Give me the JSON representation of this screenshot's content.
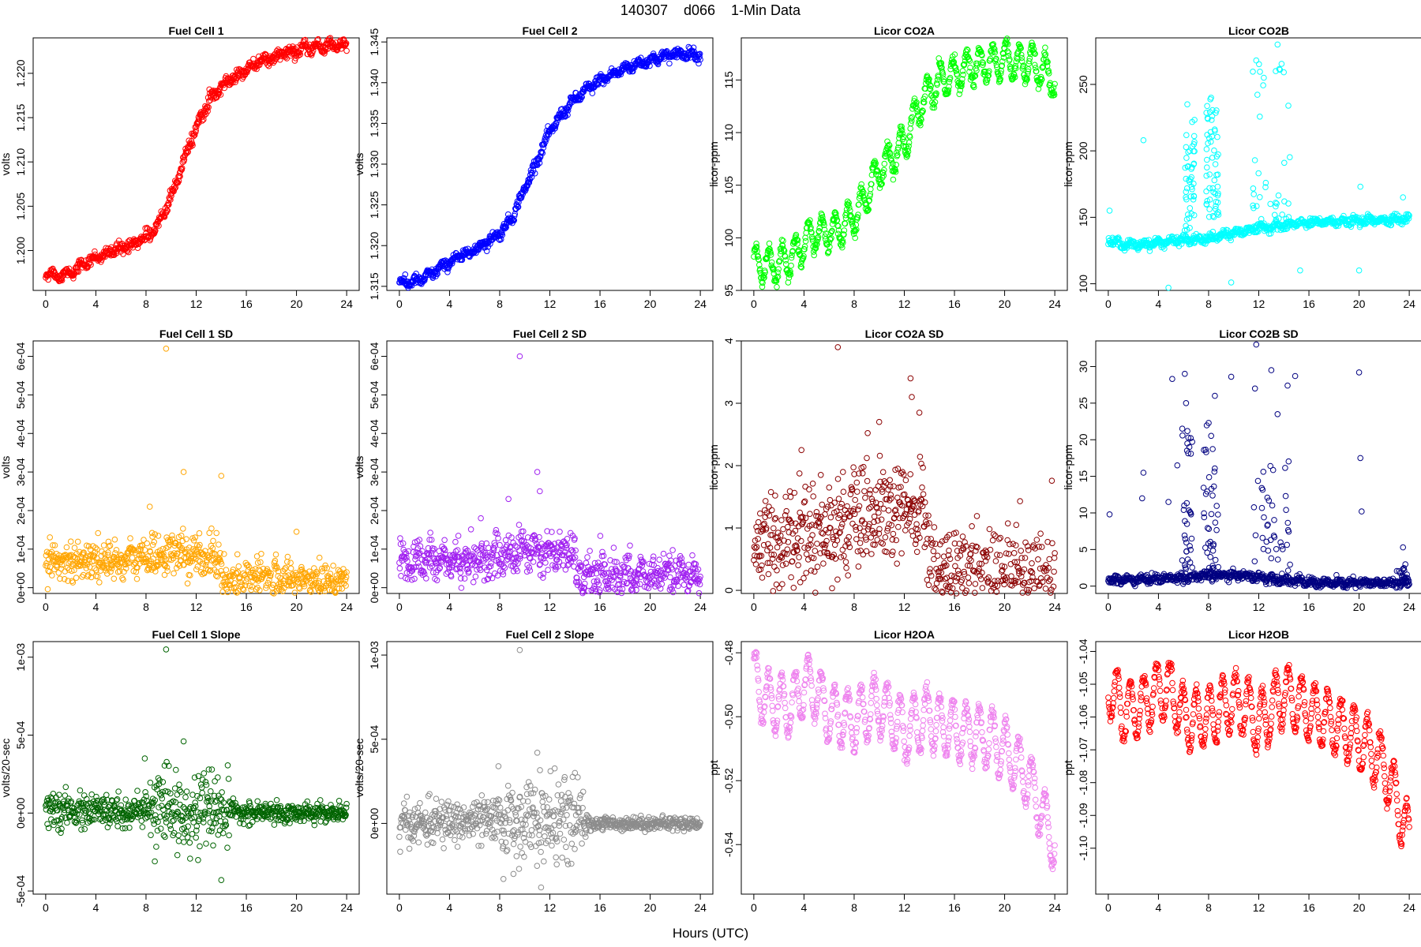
{
  "figure": {
    "title": "140307    d066    1-Min Data",
    "xlabel": "Hours (UTC)"
  },
  "chart_data": [
    {
      "type": "scatter",
      "title": "Fuel Cell 1",
      "ylabel": "volts",
      "color": "#ff0000",
      "xlim": [
        -1,
        25
      ],
      "xticks": [
        0,
        4,
        8,
        12,
        16,
        20,
        24
      ],
      "ylim": [
        1.1955,
        1.224
      ],
      "yticks": [
        1.2,
        1.205,
        1.21,
        1.215,
        1.22
      ],
      "ytick_labels": [
        "1.200",
        "1.205",
        "1.210",
        "1.215",
        "1.220"
      ],
      "pattern": "trend",
      "x": [
        0,
        1,
        2,
        3,
        4,
        5,
        6,
        7,
        8,
        9,
        10,
        11,
        12,
        13,
        14,
        15,
        16,
        17,
        18,
        19,
        20,
        21,
        22,
        23,
        24
      ],
      "y": [
        1.1975,
        1.1972,
        1.1975,
        1.1985,
        1.1992,
        1.1997,
        1.2002,
        1.2008,
        1.2015,
        1.203,
        1.206,
        1.21,
        1.214,
        1.2168,
        1.2185,
        1.2195,
        1.2205,
        1.2212,
        1.2218,
        1.2222,
        1.2226,
        1.2228,
        1.223,
        1.2232,
        1.223
      ],
      "noise": 0.0003,
      "wiggle": 0.0003
    },
    {
      "type": "scatter",
      "title": "Fuel Cell 2",
      "ylabel": "volts",
      "color": "#0000ff",
      "xlim": [
        -1,
        25
      ],
      "xticks": [
        0,
        4,
        8,
        12,
        16,
        20,
        24
      ],
      "ylim": [
        1.3145,
        1.3455
      ],
      "yticks": [
        1.315,
        1.32,
        1.325,
        1.33,
        1.335,
        1.34,
        1.345
      ],
      "ytick_labels": [
        "1.315",
        "1.320",
        "1.325",
        "1.330",
        "1.335",
        "1.340",
        "1.345"
      ],
      "pattern": "trend",
      "x": [
        0,
        1,
        2,
        3,
        4,
        5,
        6,
        7,
        8,
        9,
        10,
        11,
        12,
        13,
        14,
        15,
        16,
        17,
        18,
        19,
        20,
        21,
        22,
        23,
        24
      ],
      "y": [
        1.3155,
        1.3155,
        1.316,
        1.317,
        1.318,
        1.3188,
        1.3195,
        1.3205,
        1.3215,
        1.3235,
        1.327,
        1.3305,
        1.334,
        1.3362,
        1.338,
        1.3392,
        1.3403,
        1.341,
        1.3418,
        1.3423,
        1.3428,
        1.3432,
        1.3435,
        1.3436,
        1.3434
      ],
      "noise": 0.0003,
      "wiggle": 0.0003
    },
    {
      "type": "scatter",
      "title": "Licor CO2A",
      "ylabel": "licor-ppm",
      "color": "#00ff00",
      "xlim": [
        -1,
        25
      ],
      "xticks": [
        0,
        4,
        8,
        12,
        16,
        20,
        24
      ],
      "ylim": [
        95,
        119
      ],
      "yticks": [
        95,
        100,
        105,
        110,
        115
      ],
      "ytick_labels": [
        "95",
        "100",
        "105",
        "110",
        "115"
      ],
      "pattern": "trend",
      "x": [
        0,
        1,
        2,
        3,
        4,
        5,
        6,
        7,
        8,
        9,
        10,
        11,
        12,
        13,
        14,
        15,
        16,
        17,
        18,
        19,
        20,
        21,
        22,
        23,
        24
      ],
      "y": [
        97.5,
        97.5,
        97.5,
        98.0,
        99.5,
        100.5,
        100.5,
        101.0,
        102.0,
        104.0,
        106.5,
        107.5,
        109.0,
        112.0,
        114.0,
        115.0,
        115.5,
        116.0,
        116.5,
        116.5,
        117.0,
        116.5,
        116.5,
        116.0,
        115.0
      ],
      "noise": 0.3,
      "wiggle": 1.6
    },
    {
      "type": "scatter",
      "title": "Licor CO2B",
      "ylabel": "licor-ppm",
      "color": "#00ffff",
      "xlim": [
        -1,
        25
      ],
      "xticks": [
        0,
        4,
        8,
        12,
        16,
        20,
        24
      ],
      "ylim": [
        95,
        285
      ],
      "yticks": [
        100,
        150,
        200,
        250
      ],
      "ytick_labels": [
        "100",
        "150",
        "200",
        "250"
      ],
      "pattern": "spiky",
      "x": [
        0,
        1,
        2,
        3,
        4,
        5,
        6,
        7,
        8,
        9,
        10,
        11,
        12,
        13,
        14,
        15,
        16,
        17,
        18,
        19,
        20,
        21,
        22,
        23,
        24
      ],
      "y": [
        133,
        130,
        129,
        130,
        131,
        132,
        133,
        133,
        134,
        136,
        138,
        140,
        142,
        143,
        144,
        145,
        146,
        146,
        147,
        147,
        147,
        148,
        148,
        149,
        148
      ],
      "noise": 1.5,
      "wiggle": 1.5,
      "outliers": [
        [
          0.1,
          155
        ],
        [
          2.8,
          208
        ],
        [
          4.8,
          97
        ],
        [
          6.3,
          235
        ],
        [
          6.5,
          200
        ],
        [
          8.2,
          240
        ],
        [
          8.5,
          215
        ],
        [
          9.8,
          101
        ],
        [
          11.8,
          268
        ],
        [
          12.4,
          255
        ],
        [
          13.5,
          280
        ],
        [
          15.3,
          110
        ],
        [
          20.0,
          110
        ],
        [
          20.1,
          173
        ],
        [
          23.5,
          165
        ]
      ],
      "clusters": [
        [
          6.0,
          6.9,
          140,
          225,
          45
        ],
        [
          7.8,
          8.8,
          150,
          240,
          55
        ],
        [
          11.5,
          14.5,
          140,
          270,
          40
        ]
      ]
    },
    {
      "type": "scatter",
      "title": "Fuel Cell 1 SD",
      "ylabel": "volts",
      "color": "#ffa500",
      "xlim": [
        -1,
        25
      ],
      "xticks": [
        0,
        4,
        8,
        12,
        16,
        20,
        24
      ],
      "ylim": [
        -1.5e-05,
        0.00064
      ],
      "yticks": [
        0,
        0.0001,
        0.0002,
        0.0003,
        0.0004,
        0.0005,
        0.0006
      ],
      "ytick_labels": [
        "0e+00",
        "1e-04",
        "2e-04",
        "3e-04",
        "4e-04",
        "5e-04",
        "6e-04"
      ],
      "pattern": "noise",
      "x": [
        0,
        2,
        4,
        6,
        8,
        10,
        12,
        13.9,
        14.1,
        16,
        18,
        20,
        22,
        24
      ],
      "y": [
        7e-05,
        7e-05,
        7e-05,
        7e-05,
        8e-05,
        9e-05,
        8e-05,
        8e-05,
        2e-05,
        2e-05,
        2e-05,
        2e-05,
        2e-05,
        2e-05
      ],
      "noise": 2.5e-05,
      "wiggle": 8e-06,
      "outliers": [
        [
          9.6,
          0.00062
        ],
        [
          11.0,
          0.0003
        ],
        [
          14.0,
          0.00029
        ],
        [
          8.3,
          0.00021
        ],
        [
          20.0,
          0.000145
        ]
      ]
    },
    {
      "type": "scatter",
      "title": "Fuel Cell 2 SD",
      "ylabel": "volts",
      "color": "#a020f0",
      "xlim": [
        -1,
        25
      ],
      "xticks": [
        0,
        4,
        8,
        12,
        16,
        20,
        24
      ],
      "ylim": [
        -1.5e-05,
        0.00064
      ],
      "yticks": [
        0,
        0.0001,
        0.0002,
        0.0003,
        0.0004,
        0.0005,
        0.0006
      ],
      "ytick_labels": [
        "0e+00",
        "1e-04",
        "2e-04",
        "3e-04",
        "4e-04",
        "5e-04",
        "6e-04"
      ],
      "pattern": "noise",
      "x": [
        0,
        2,
        4,
        6,
        8,
        10,
        12,
        13.9,
        14.1,
        16,
        18,
        20,
        22,
        24
      ],
      "y": [
        7e-05,
        7e-05,
        7e-05,
        7e-05,
        8e-05,
        0.0001,
        9e-05,
        9e-05,
        3e-05,
        3e-05,
        3e-05,
        3e-05,
        3e-05,
        3e-05
      ],
      "noise": 2.5e-05,
      "wiggle": 1.8e-05,
      "outliers": [
        [
          9.6,
          0.0006
        ],
        [
          11.0,
          0.0003
        ],
        [
          8.7,
          0.00023
        ],
        [
          11.2,
          0.00025
        ],
        [
          6.5,
          0.00018
        ]
      ]
    },
    {
      "type": "scatter",
      "title": "Licor CO2A SD",
      "ylabel": "licor-ppm",
      "color": "#8b0000",
      "xlim": [
        -1,
        25
      ],
      "xticks": [
        0,
        4,
        8,
        12,
        16,
        20,
        24
      ],
      "ylim": [
        -0.05,
        4.0
      ],
      "yticks": [
        0,
        1,
        2,
        3,
        4
      ],
      "ytick_labels": [
        "0",
        "1",
        "2",
        "3",
        "4"
      ],
      "pattern": "noise",
      "x": [
        0,
        2,
        4,
        6,
        8,
        10,
        12,
        13.7,
        13.9,
        16,
        18,
        20,
        22,
        24
      ],
      "y": [
        0.8,
        0.8,
        0.9,
        1.0,
        1.1,
        1.2,
        1.2,
        1.3,
        0.3,
        0.25,
        0.25,
        0.22,
        0.2,
        0.2
      ],
      "noise": 0.4,
      "wiggle": 0.05,
      "outliers": [
        [
          6.7,
          3.9
        ],
        [
          12.5,
          3.4
        ],
        [
          12.6,
          3.1
        ],
        [
          13.2,
          2.85
        ],
        [
          3.8,
          2.25
        ],
        [
          10.0,
          2.7
        ]
      ]
    },
    {
      "type": "scatter",
      "title": "Licor CO2B SD",
      "ylabel": "licor-ppm",
      "color": "#000080",
      "xlim": [
        -1,
        25
      ],
      "xticks": [
        0,
        4,
        8,
        12,
        16,
        20,
        24
      ],
      "ylim": [
        -1,
        33.5
      ],
      "yticks": [
        0,
        5,
        10,
        15,
        20,
        25,
        30
      ],
      "ytick_labels": [
        "0",
        "5",
        "10",
        "15",
        "20",
        "25",
        "30"
      ],
      "pattern": "spiky",
      "x": [
        0,
        2,
        4,
        6,
        8,
        10,
        12,
        14,
        16,
        18,
        20,
        22,
        24
      ],
      "y": [
        0.8,
        0.9,
        1.0,
        1.2,
        1.4,
        1.5,
        1.3,
        0.9,
        0.5,
        0.4,
        0.4,
        0.4,
        0.5
      ],
      "noise": 0.3,
      "wiggle": 0.2,
      "outliers": [
        [
          0.1,
          9.8
        ],
        [
          2.8,
          15.5
        ],
        [
          2.7,
          12.0
        ],
        [
          4.8,
          11.5
        ],
        [
          5.5,
          16.5
        ],
        [
          5.1,
          28.3
        ],
        [
          6.1,
          29.0
        ],
        [
          6.2,
          25.0
        ],
        [
          8.0,
          22.3
        ],
        [
          8.5,
          26.0
        ],
        [
          9.8,
          28.6
        ],
        [
          11.8,
          33.0
        ],
        [
          11.7,
          27.0
        ],
        [
          13.0,
          29.5
        ],
        [
          13.5,
          23.5
        ],
        [
          14.3,
          27.4
        ],
        [
          14.9,
          28.7
        ],
        [
          20.0,
          29.2
        ],
        [
          20.1,
          17.5
        ],
        [
          20.2,
          10.2
        ],
        [
          23.5,
          5.3
        ]
      ],
      "clusters": [
        [
          5.8,
          6.8,
          2,
          22,
          35
        ],
        [
          7.6,
          8.8,
          2,
          22,
          40
        ],
        [
          11.4,
          14.5,
          2,
          18,
          40
        ],
        [
          23.0,
          23.9,
          1,
          3,
          15
        ]
      ]
    },
    {
      "type": "scatter",
      "title": "Fuel Cell 1 Slope",
      "ylabel": "volts/20-sec",
      "color": "#006400",
      "xlim": [
        -1,
        25
      ],
      "xticks": [
        0,
        4,
        8,
        12,
        16,
        20,
        24
      ],
      "ylim": [
        -0.00052,
        0.0011
      ],
      "yticks": [
        -0.0005,
        0,
        0.0005,
        0.001
      ],
      "ytick_labels": [
        "-5e-04",
        "0e+00",
        "5e-04",
        "1e-03"
      ],
      "pattern": "noise",
      "x": [
        0,
        2,
        4,
        6,
        8,
        9,
        12,
        14,
        15,
        18,
        24
      ],
      "y": [
        1e-05,
        1e-05,
        1e-05,
        1e-05,
        1e-05,
        2e-05,
        2e-05,
        1e-05,
        0,
        0,
        0
      ],
      "noise_profile": [
        [
          0,
          5e-05
        ],
        [
          8,
          6e-05
        ],
        [
          9,
          0.00011
        ],
        [
          14.5,
          0.00011
        ],
        [
          15,
          3e-05
        ],
        [
          24,
          3e-05
        ]
      ],
      "wiggle": 0,
      "outliers": [
        [
          9.6,
          0.00105
        ],
        [
          11.0,
          0.00046
        ],
        [
          7.9,
          0.00035
        ],
        [
          14.0,
          -0.00043
        ],
        [
          8.7,
          -0.00031
        ],
        [
          10.5,
          -0.00027
        ],
        [
          13.0,
          0.00028
        ]
      ]
    },
    {
      "type": "scatter",
      "title": "Fuel Cell 2 Slope",
      "ylabel": "volts/20-sec",
      "color": "#8c8c8c",
      "xlim": [
        -1,
        25
      ],
      "xticks": [
        0,
        4,
        8,
        12,
        16,
        20,
        24
      ],
      "ylim": [
        -0.00042,
        0.00108
      ],
      "yticks": [
        0,
        0.0005,
        0.001
      ],
      "ytick_labels": [
        "0e+00",
        "5e-04",
        "1e-03"
      ],
      "pattern": "noise",
      "x": [
        0,
        2,
        4,
        6,
        8,
        9,
        12,
        14,
        15,
        18,
        24
      ],
      "y": [
        0,
        0,
        1e-05,
        1e-05,
        1e-05,
        2e-05,
        2e-05,
        1e-05,
        0,
        0,
        0
      ],
      "noise_profile": [
        [
          0,
          6e-05
        ],
        [
          8,
          7e-05
        ],
        [
          9,
          0.00012
        ],
        [
          14.5,
          0.00012
        ],
        [
          15,
          2e-05
        ],
        [
          24,
          2e-05
        ]
      ],
      "wiggle": 0,
      "outliers": [
        [
          9.6,
          0.00103
        ],
        [
          11.0,
          0.00042
        ],
        [
          7.9,
          0.00034
        ],
        [
          11.3,
          -0.00038
        ],
        [
          8.3,
          -0.00033
        ],
        [
          14.0,
          0.0003
        ],
        [
          9.1,
          -0.0003
        ]
      ]
    },
    {
      "type": "scatter",
      "title": "Licor H2OA",
      "ylabel": "ppt",
      "color": "#ee82ee",
      "xlim": [
        -1,
        25
      ],
      "xticks": [
        0,
        4,
        8,
        12,
        16,
        20,
        24
      ],
      "ylim": [
        -0.5555,
        -0.4765
      ],
      "yticks": [
        -0.54,
        -0.52,
        -0.5,
        -0.48
      ],
      "ytick_labels": [
        "-0.54",
        "-0.52",
        "-0.50",
        "-0.48"
      ],
      "pattern": "oscillating",
      "x": [
        0,
        1,
        2,
        3,
        4,
        5,
        6,
        7,
        8,
        9,
        10,
        11,
        12,
        13,
        14,
        15,
        16,
        17,
        18,
        19,
        20,
        21,
        22,
        23,
        24
      ],
      "y": [
        -0.488,
        -0.495,
        -0.496,
        -0.497,
        -0.49,
        -0.492,
        -0.499,
        -0.5,
        -0.502,
        -0.498,
        -0.497,
        -0.5,
        -0.505,
        -0.502,
        -0.5,
        -0.503,
        -0.504,
        -0.505,
        -0.506,
        -0.507,
        -0.51,
        -0.515,
        -0.52,
        -0.53,
        -0.54
      ],
      "noise": 0.001,
      "wiggle": 0.009
    },
    {
      "type": "scatter",
      "title": "Licor H2OB",
      "ylabel": "ppt",
      "color": "#ff0000",
      "xlim": [
        -1,
        25
      ],
      "xticks": [
        0,
        4,
        8,
        12,
        16,
        20,
        24
      ],
      "ylim": [
        -1.114,
        -1.037
      ],
      "yticks": [
        -1.1,
        -1.09,
        -1.08,
        -1.07,
        -1.06,
        -1.05,
        -1.04
      ],
      "ytick_labels": [
        "-1.10",
        "-1.09",
        "-1.08",
        "-1.07",
        "-1.06",
        "-1.05",
        "-1.04"
      ],
      "pattern": "oscillating",
      "x": [
        0,
        1,
        2,
        3,
        4,
        5,
        6,
        7,
        8,
        9,
        10,
        11,
        12,
        13,
        14,
        15,
        16,
        17,
        18,
        19,
        20,
        21,
        22,
        23,
        24
      ],
      "y": [
        -1.05,
        -1.058,
        -1.058,
        -1.056,
        -1.052,
        -1.052,
        -1.06,
        -1.061,
        -1.06,
        -1.057,
        -1.055,
        -1.057,
        -1.062,
        -1.058,
        -1.052,
        -1.056,
        -1.058,
        -1.06,
        -1.062,
        -1.064,
        -1.067,
        -1.07,
        -1.075,
        -1.085,
        -1.098
      ],
      "noise": 0.001,
      "wiggle": 0.009
    }
  ]
}
